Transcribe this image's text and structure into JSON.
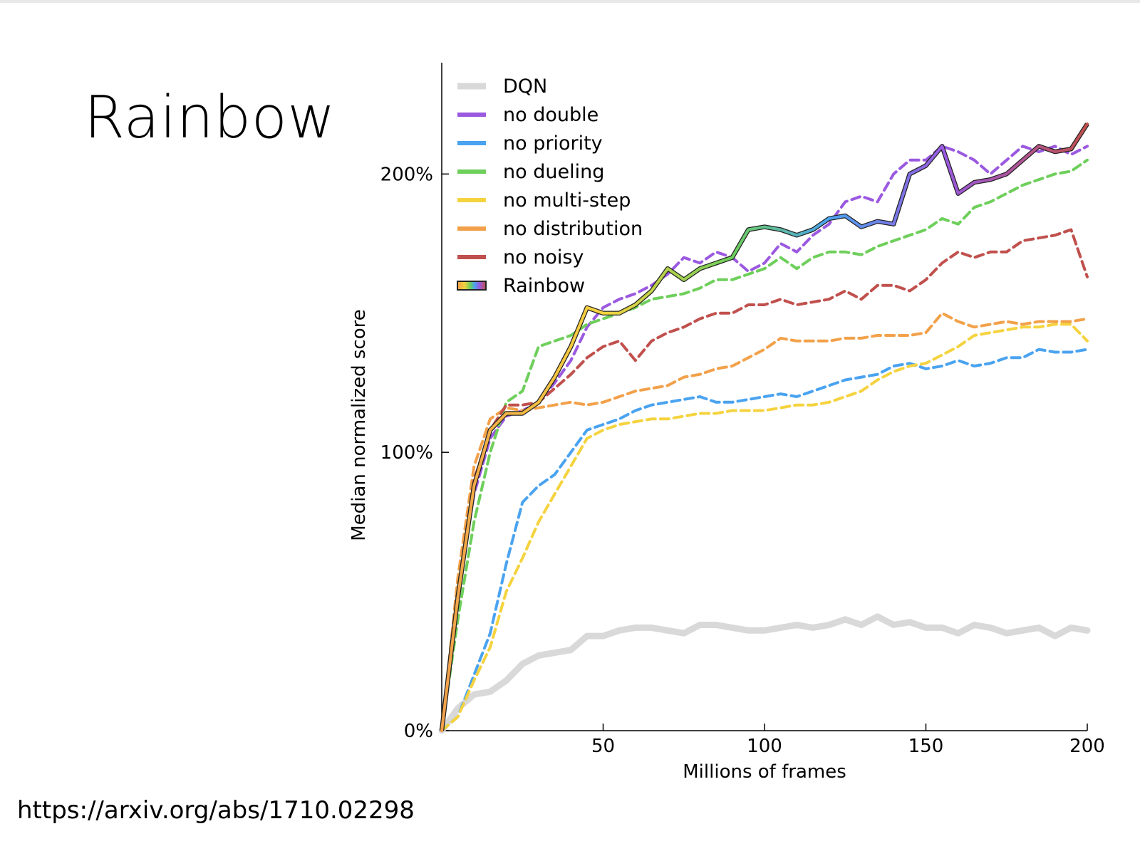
{
  "slide": {
    "title": "Rainbow",
    "source": "https://arxiv.org/abs/1710.02298"
  },
  "chart_data": {
    "type": "line",
    "xlabel": "Millions of frames",
    "ylabel": "Median normalized score",
    "xlim": [
      0,
      200
    ],
    "ylim": [
      0,
      240
    ],
    "xticks": [
      50,
      100,
      150,
      200
    ],
    "yticks": [
      0,
      100,
      200
    ],
    "ytick_labels": [
      "0%",
      "100%",
      "200%"
    ],
    "legend_position": "top-left",
    "grid": false,
    "series": [
      {
        "name": "DQN",
        "color": "#d9d9d9",
        "style": "solid",
        "x": [
          0,
          5,
          10,
          15,
          20,
          25,
          30,
          35,
          40,
          45,
          50,
          55,
          60,
          65,
          70,
          75,
          80,
          85,
          90,
          95,
          100,
          105,
          110,
          115,
          120,
          125,
          130,
          135,
          140,
          145,
          150,
          155,
          160,
          165,
          170,
          175,
          180,
          185,
          190,
          195,
          200
        ],
        "y": [
          0,
          8,
          13,
          14,
          18,
          24,
          27,
          28,
          29,
          34,
          34,
          36,
          37,
          37,
          36,
          35,
          38,
          38,
          37,
          36,
          36,
          37,
          38,
          37,
          38,
          40,
          38,
          41,
          38,
          39,
          37,
          37,
          35,
          38,
          37,
          35,
          36,
          37,
          34,
          37,
          36
        ]
      },
      {
        "name": "no double",
        "color": "#9b59e0",
        "style": "dashed",
        "x": [
          0,
          5,
          10,
          15,
          20,
          25,
          30,
          35,
          40,
          45,
          50,
          55,
          60,
          65,
          70,
          75,
          80,
          85,
          90,
          95,
          100,
          105,
          110,
          115,
          120,
          125,
          130,
          135,
          140,
          145,
          150,
          155,
          160,
          165,
          170,
          175,
          180,
          185,
          190,
          195,
          200
        ],
        "y": [
          0,
          50,
          85,
          105,
          113,
          115,
          118,
          125,
          133,
          145,
          152,
          155,
          157,
          160,
          164,
          170,
          168,
          172,
          170,
          165,
          168,
          175,
          172,
          178,
          182,
          190,
          192,
          190,
          200,
          205,
          205,
          210,
          208,
          205,
          200,
          205,
          210,
          208,
          210,
          207,
          210
        ]
      },
      {
        "name": "no priority",
        "color": "#4aa3f0",
        "style": "dashed",
        "x": [
          0,
          5,
          10,
          15,
          20,
          25,
          30,
          35,
          40,
          45,
          50,
          55,
          60,
          65,
          70,
          75,
          80,
          85,
          90,
          95,
          100,
          105,
          110,
          115,
          120,
          125,
          130,
          135,
          140,
          145,
          150,
          155,
          160,
          165,
          170,
          175,
          180,
          185,
          190,
          195,
          200
        ],
        "y": [
          0,
          5,
          20,
          35,
          60,
          82,
          88,
          92,
          100,
          108,
          110,
          112,
          115,
          117,
          118,
          119,
          120,
          118,
          118,
          119,
          120,
          121,
          120,
          122,
          124,
          126,
          127,
          128,
          131,
          132,
          130,
          131,
          133,
          131,
          132,
          134,
          134,
          137,
          136,
          136,
          137
        ]
      },
      {
        "name": "no dueling",
        "color": "#6ecf5b",
        "style": "dashed",
        "x": [
          0,
          5,
          10,
          15,
          20,
          25,
          30,
          35,
          40,
          45,
          50,
          55,
          60,
          65,
          70,
          75,
          80,
          85,
          90,
          95,
          100,
          105,
          110,
          115,
          120,
          125,
          130,
          135,
          140,
          145,
          150,
          155,
          160,
          165,
          170,
          175,
          180,
          185,
          190,
          195,
          200
        ],
        "y": [
          0,
          40,
          75,
          100,
          118,
          122,
          138,
          140,
          142,
          146,
          148,
          150,
          152,
          155,
          156,
          157,
          159,
          162,
          162,
          164,
          166,
          170,
          166,
          170,
          172,
          172,
          171,
          174,
          176,
          178,
          180,
          184,
          182,
          188,
          190,
          193,
          196,
          198,
          200,
          201,
          205
        ]
      },
      {
        "name": "no multi-step",
        "color": "#f5d33f",
        "style": "dashed",
        "x": [
          0,
          5,
          10,
          15,
          20,
          25,
          30,
          35,
          40,
          45,
          50,
          55,
          60,
          65,
          70,
          75,
          80,
          85,
          90,
          95,
          100,
          105,
          110,
          115,
          120,
          125,
          130,
          135,
          140,
          145,
          150,
          155,
          160,
          165,
          170,
          175,
          180,
          185,
          190,
          195,
          200
        ],
        "y": [
          0,
          5,
          18,
          30,
          50,
          62,
          75,
          85,
          95,
          105,
          108,
          110,
          111,
          112,
          112,
          113,
          114,
          114,
          115,
          115,
          115,
          116,
          117,
          117,
          118,
          120,
          122,
          126,
          129,
          131,
          132,
          135,
          138,
          142,
          143,
          144,
          145,
          145,
          146,
          146,
          140
        ]
      },
      {
        "name": "no distribution",
        "color": "#f2a14a",
        "style": "dashed",
        "x": [
          0,
          5,
          10,
          15,
          20,
          25,
          30,
          35,
          40,
          45,
          50,
          55,
          60,
          65,
          70,
          75,
          80,
          85,
          90,
          95,
          100,
          105,
          110,
          115,
          120,
          125,
          130,
          135,
          140,
          145,
          150,
          155,
          160,
          165,
          170,
          175,
          180,
          185,
          190,
          195,
          200
        ],
        "y": [
          0,
          55,
          95,
          112,
          116,
          115,
          116,
          117,
          118,
          117,
          118,
          120,
          122,
          123,
          124,
          127,
          128,
          130,
          131,
          134,
          137,
          141,
          140,
          140,
          140,
          141,
          141,
          142,
          142,
          142,
          143,
          150,
          147,
          145,
          146,
          147,
          146,
          147,
          147,
          147,
          148
        ]
      },
      {
        "name": "no noisy",
        "color": "#c0504d",
        "style": "dashed",
        "x": [
          0,
          5,
          10,
          15,
          20,
          25,
          30,
          35,
          40,
          45,
          50,
          55,
          60,
          65,
          70,
          75,
          80,
          85,
          90,
          95,
          100,
          105,
          110,
          115,
          120,
          125,
          130,
          135,
          140,
          145,
          150,
          155,
          160,
          165,
          170,
          175,
          180,
          185,
          190,
          195,
          200
        ],
        "y": [
          0,
          50,
          90,
          108,
          117,
          117,
          118,
          123,
          128,
          134,
          138,
          140,
          133,
          140,
          143,
          145,
          148,
          150,
          150,
          153,
          153,
          155,
          153,
          154,
          155,
          158,
          155,
          160,
          160,
          158,
          162,
          168,
          172,
          170,
          172,
          172,
          176,
          177,
          178,
          180,
          163
        ]
      },
      {
        "name": "Rainbow",
        "color": "rainbow",
        "style": "solid",
        "x": [
          0,
          5,
          10,
          15,
          20,
          25,
          30,
          35,
          40,
          45,
          50,
          55,
          60,
          65,
          70,
          75,
          80,
          85,
          90,
          95,
          100,
          105,
          110,
          115,
          120,
          125,
          130,
          135,
          140,
          145,
          150,
          155,
          160,
          165,
          170,
          175,
          180,
          185,
          190,
          195,
          200
        ],
        "y": [
          0,
          48,
          88,
          108,
          114,
          114,
          118,
          127,
          138,
          152,
          150,
          150,
          153,
          158,
          166,
          162,
          166,
          168,
          170,
          180,
          181,
          180,
          178,
          180,
          184,
          185,
          181,
          183,
          182,
          200,
          203,
          210,
          193,
          197,
          198,
          200,
          205,
          210,
          208,
          209,
          218
        ]
      }
    ]
  }
}
